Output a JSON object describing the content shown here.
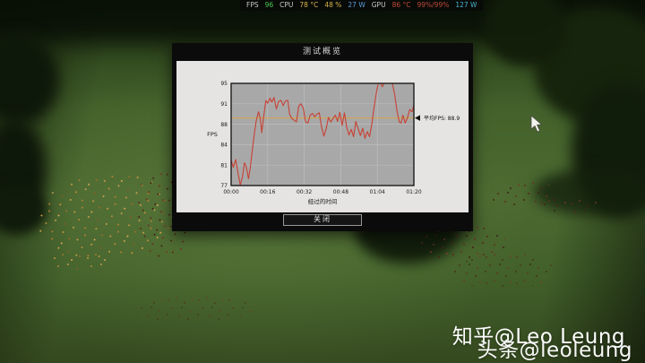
{
  "overlay": {
    "segments": [
      {
        "text": "FPS",
        "color": "#c9c9c9"
      },
      {
        "text": "96",
        "color": "#4fc94f"
      },
      {
        "text": "CPU",
        "color": "#c9c9c9"
      },
      {
        "text": "78 °C",
        "color": "#d4b44a"
      },
      {
        "text": "48 %",
        "color": "#d4b44a"
      },
      {
        "text": "27 W",
        "color": "#5a9fd8"
      },
      {
        "text": "GPU",
        "color": "#c9c9c9"
      },
      {
        "text": "86 °C",
        "color": "#bf4a38"
      },
      {
        "text": "99%/99%",
        "color": "#bf4a38"
      },
      {
        "text": "127 W",
        "color": "#4ab4cf"
      }
    ]
  },
  "dialog": {
    "title": "测试概览",
    "close_label": "关闭"
  },
  "chart_data": {
    "type": "line",
    "title": "测试概览",
    "xlabel": "经过的时间",
    "ylabel": "FPS",
    "x_ticks": [
      "00:00",
      "00:16",
      "00:32",
      "00:48",
      "01:04",
      "01:20"
    ],
    "x_tick_seconds": [
      0,
      16,
      32,
      48,
      64,
      80
    ],
    "y_ticks": [
      95,
      91,
      88,
      84,
      81,
      77
    ],
    "ylim": [
      77,
      95
    ],
    "xlim_seconds": [
      0,
      80
    ],
    "grid": true,
    "legend": "none",
    "average": {
      "label": "平均FPS:",
      "value": "88.9",
      "numeric": 88.9
    },
    "colors": {
      "line": "#c84135",
      "average_line": "#d9a445",
      "plot_bg": "#a8a8a8",
      "grid": "#bdbdbd",
      "plot_border": "#1b1b1b"
    },
    "series": [
      {
        "name": "FPS",
        "points": [
          [
            0,
            81.4
          ],
          [
            1,
            80.2
          ],
          [
            2,
            81.6
          ],
          [
            3,
            79.2
          ],
          [
            4,
            77.1
          ],
          [
            5,
            78.6
          ],
          [
            5.8,
            81.0
          ],
          [
            6.6,
            80.4
          ],
          [
            7.6,
            78.2
          ],
          [
            8.4,
            80.2
          ],
          [
            9.2,
            83.0
          ],
          [
            10.2,
            86.2
          ],
          [
            11,
            88.4
          ],
          [
            12,
            90.0
          ],
          [
            12.8,
            88.8
          ],
          [
            13.4,
            86.3
          ],
          [
            14.2,
            89.0
          ],
          [
            15.2,
            92.0
          ],
          [
            16,
            91.5
          ],
          [
            17,
            92.4
          ],
          [
            17.8,
            91.7
          ],
          [
            18.8,
            92.5
          ],
          [
            19.8,
            90.5
          ],
          [
            20.8,
            91.8
          ],
          [
            21.8,
            92.0
          ],
          [
            22.8,
            91.1
          ],
          [
            23.8,
            91.9
          ],
          [
            24.8,
            92.0
          ],
          [
            25.6,
            89.6
          ],
          [
            26.6,
            88.8
          ],
          [
            27.6,
            88.5
          ],
          [
            28.6,
            88.2
          ],
          [
            29.6,
            91.0
          ],
          [
            30.6,
            91.4
          ],
          [
            31.6,
            90.6
          ],
          [
            32.6,
            88.2
          ],
          [
            33.6,
            88.0
          ],
          [
            34.6,
            89.4
          ],
          [
            35.6,
            89.7
          ],
          [
            36.6,
            89.1
          ],
          [
            37.6,
            89.6
          ],
          [
            38.6,
            89.8
          ],
          [
            39.6,
            87.3
          ],
          [
            40.6,
            85.7
          ],
          [
            41.6,
            87.0
          ],
          [
            42.6,
            89.0
          ],
          [
            43.6,
            88.2
          ],
          [
            44.6,
            88.8
          ],
          [
            45.6,
            89.4
          ],
          [
            46.6,
            88.3
          ],
          [
            47.6,
            89.9
          ],
          [
            48.6,
            87.6
          ],
          [
            49.6,
            89.8
          ],
          [
            50.6,
            87.3
          ],
          [
            51.6,
            85.9
          ],
          [
            52.6,
            86.9
          ],
          [
            53.6,
            85.6
          ],
          [
            54.6,
            88.3
          ],
          [
            55.6,
            87.0
          ],
          [
            56.6,
            85.8
          ],
          [
            57.6,
            87.1
          ],
          [
            58.6,
            85.3
          ],
          [
            59.6,
            86.5
          ],
          [
            60.6,
            85.6
          ],
          [
            61.6,
            87.9
          ],
          [
            62.6,
            90.8
          ],
          [
            63.6,
            93.4
          ],
          [
            64.4,
            95.0
          ],
          [
            65.4,
            95.0
          ],
          [
            66.2,
            94.4
          ],
          [
            67,
            95.0
          ],
          [
            68.4,
            95.0
          ],
          [
            69.6,
            95.0
          ],
          [
            70.6,
            95.0
          ],
          [
            71.6,
            93.0
          ],
          [
            72.6,
            90.2
          ],
          [
            73.6,
            88.2
          ],
          [
            74.4,
            88.0
          ],
          [
            75.2,
            89.4
          ],
          [
            76.2,
            88.0
          ],
          [
            77.2,
            89.0
          ],
          [
            78.2,
            90.4
          ],
          [
            79.2,
            90.0
          ],
          [
            80,
            91.2
          ]
        ]
      }
    ]
  },
  "watermark": {
    "line1": "知乎@Leo Leung",
    "line2": "头条@leoleung"
  }
}
